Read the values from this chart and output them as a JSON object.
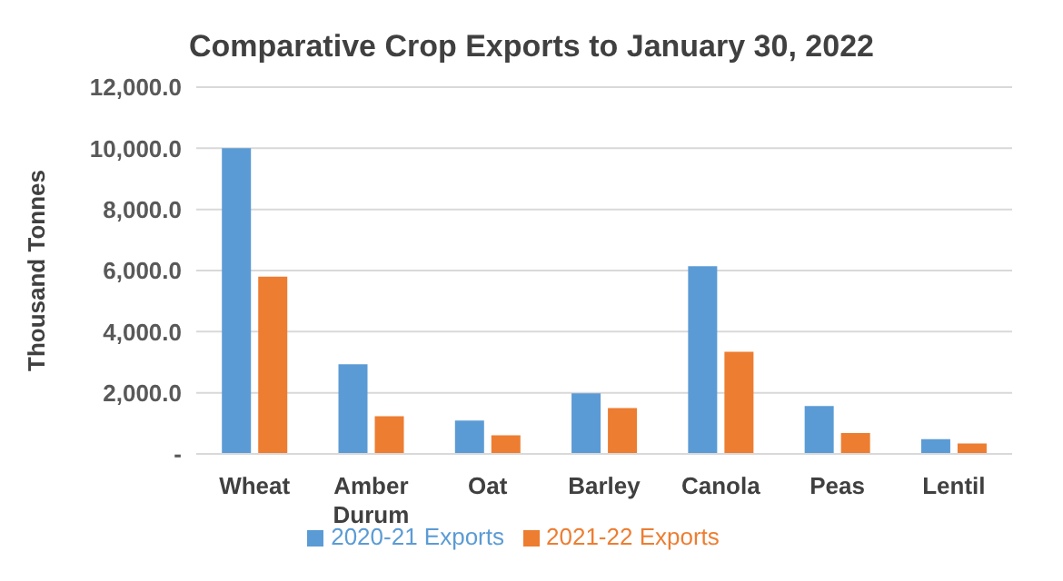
{
  "chart_data": {
    "type": "bar",
    "title": "Comparative Crop Exports to January 30, 2022",
    "ylabel": "Thousand Tonnes",
    "categories": [
      "Wheat",
      "Amber Durum",
      "Oat",
      "Barley",
      "Canola",
      "Peas",
      "Lentil"
    ],
    "series": [
      {
        "name": "2020-21 Exports",
        "color": "#5b9bd5",
        "values": [
          10000,
          2930,
          1090,
          1980,
          6140,
          1570,
          480
        ]
      },
      {
        "name": "2021-22 Exports",
        "color": "#ed7d31",
        "values": [
          5800,
          1230,
          610,
          1500,
          3340,
          680,
          340
        ]
      }
    ],
    "ylim": [
      0,
      12000
    ],
    "yticks": [
      {
        "value": 0,
        "label": "-"
      },
      {
        "value": 2000,
        "label": "2,000.0"
      },
      {
        "value": 4000,
        "label": "4,000.0"
      },
      {
        "value": 6000,
        "label": "6,000.0"
      },
      {
        "value": 8000,
        "label": "8,000.0"
      },
      {
        "value": 10000,
        "label": "10,000.0"
      },
      {
        "value": 12000,
        "label": "12,000.0"
      }
    ],
    "grid": "y",
    "legend": "bottom"
  }
}
